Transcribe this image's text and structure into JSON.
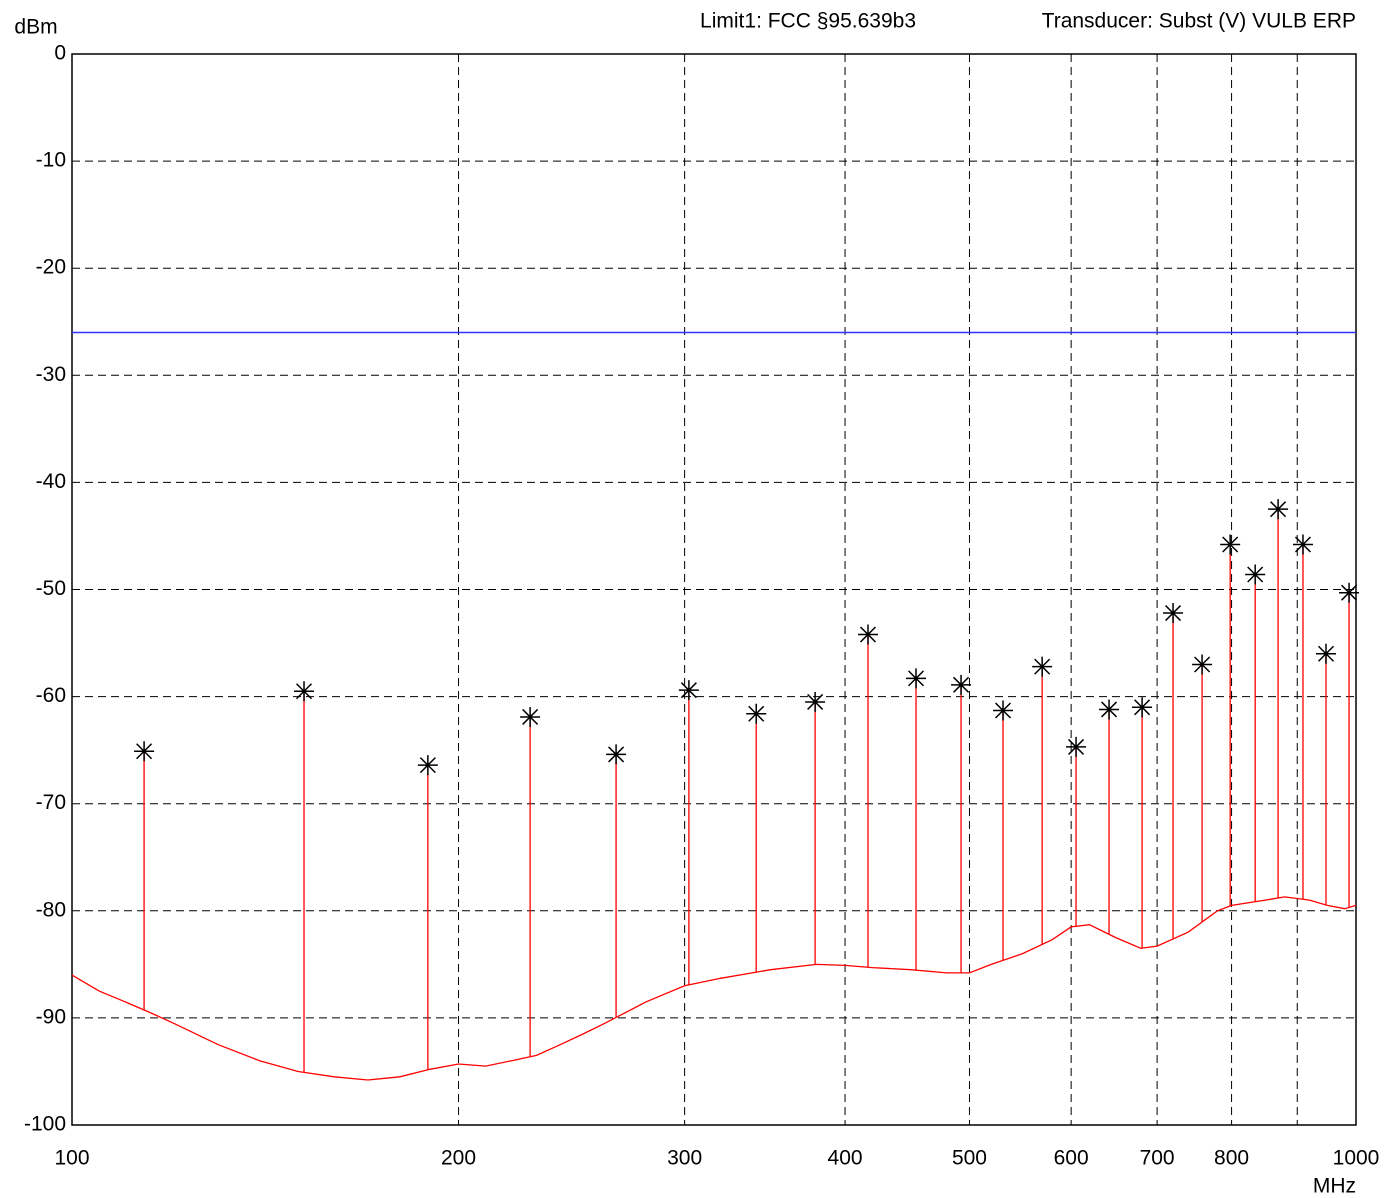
{
  "chart_data": {
    "type": "spectrum",
    "header_left": "Limit1: FCC §95.639b3",
    "header_right": "Transducer: Subst (V) VULB ERP",
    "y_label": "dBm",
    "x_label": "MHz",
    "x_log": true,
    "grid": true,
    "xlim": [
      100,
      1000
    ],
    "ylim": [
      -100,
      0
    ],
    "xticks": [
      100,
      200,
      300,
      400,
      500,
      600,
      700,
      800,
      {
        "value": 900,
        "label": null
      },
      1000
    ],
    "yticks": [
      0,
      -10,
      -20,
      -30,
      -40,
      -50,
      -60,
      -70,
      -80,
      -90,
      -100
    ],
    "limit_value": -26,
    "limit_color": "#3333ff",
    "trace": {
      "color": "#ff0000",
      "x": [
        100,
        105,
        110,
        115,
        120,
        130,
        140,
        150,
        160,
        170,
        180,
        190,
        200,
        210,
        220,
        230,
        240,
        250,
        260,
        280,
        300,
        320,
        350,
        380,
        400,
        420,
        450,
        480,
        500,
        520,
        550,
        580,
        600,
        620,
        650,
        680,
        700,
        740,
        780,
        800,
        850,
        880,
        920,
        950,
        980,
        1000
      ],
      "values": [
        -86,
        -87.5,
        -88.5,
        -89.5,
        -90.5,
        -92.5,
        -94,
        -95,
        -95.5,
        -95.8,
        -95.5,
        -94.8,
        -94.3,
        -94.5,
        -94,
        -93.5,
        -92.5,
        -91.5,
        -90.5,
        -88.5,
        -87,
        -86.3,
        -85.5,
        -85,
        -85.1,
        -85.3,
        -85.5,
        -85.8,
        -85.8,
        -85,
        -84,
        -82.7,
        -81.5,
        -81.3,
        -82.5,
        -83.5,
        -83.3,
        -82,
        -80,
        -79.5,
        -79,
        -78.7,
        -79,
        -79.5,
        -79.8,
        -79.5
      ]
    },
    "peaks": {
      "color": "#000000",
      "x": [
        113.8,
        151.6,
        189.3,
        227.4,
        265.3,
        302.3,
        341.1,
        379.1,
        416.8,
        454.3,
        492.5,
        531,
        569.6,
        605.3,
        642.2,
        681.4,
        720.3,
        758.8,
        798,
        834.6,
        869.6,
        909.3,
        947.6,
        987.6
      ],
      "values": [
        -65.1,
        -59.5,
        -66.4,
        -61.9,
        -65.4,
        -59.4,
        -61.6,
        -60.5,
        -54.2,
        -58.3,
        -58.9,
        -61.3,
        -57.2,
        -64.7,
        -61.2,
        -61,
        -52.2,
        -57,
        -45.8,
        -48.6,
        -42.5,
        -45.8,
        -56,
        -50.3
      ]
    }
  }
}
